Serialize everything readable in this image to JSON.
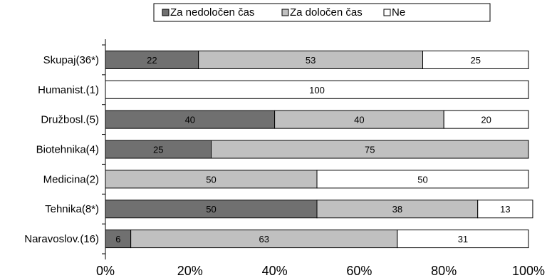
{
  "chart_data": {
    "type": "bar",
    "orientation": "horizontal",
    "stacked": true,
    "percent": true,
    "categories": [
      "Skupaj(36*)",
      "Humanist.(1)",
      "Družbosl.(5)",
      "Biotehnika(4)",
      "Medicina(2)",
      "Tehnika(8*)",
      "Naravoslov.(16)"
    ],
    "series": [
      {
        "name": "Za nedoločen čas",
        "color": "#707070",
        "values": [
          22,
          0,
          40,
          25,
          0,
          50,
          6
        ]
      },
      {
        "name": "Za določen čas",
        "color": "#c0c0c0",
        "values": [
          53,
          0,
          40,
          75,
          50,
          38,
          63
        ]
      },
      {
        "name": "Ne",
        "color": "#ffffff",
        "values": [
          25,
          100,
          20,
          0,
          50,
          13,
          31
        ]
      }
    ],
    "xticks": [
      "0%",
      "20%",
      "40%",
      "60%",
      "80%",
      "100%"
    ],
    "xlim": [
      0,
      100
    ],
    "legend": "top",
    "grid": false
  }
}
